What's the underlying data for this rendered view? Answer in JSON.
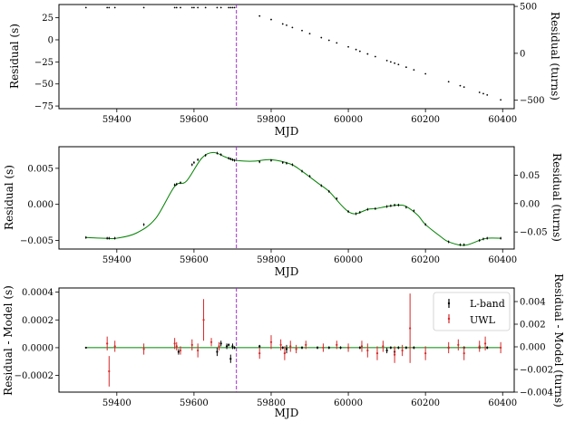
{
  "chart_data": [
    {
      "type": "scatter",
      "xlabel": "MJD",
      "ylabel": "Residual (s)",
      "ylabel_right": "Residual (turns)",
      "xlim": [
        59250,
        60430
      ],
      "ylim": [
        -78,
        40
      ],
      "ylim_right": [
        -590,
        520
      ],
      "xticks": [
        59400,
        59600,
        59800,
        60000,
        60200,
        60400
      ],
      "yticks": [
        -75,
        -50,
        -25,
        0,
        25
      ],
      "yticks_right": [
        -500,
        0,
        500
      ],
      "vline_mjd": 59710,
      "series": [
        {
          "x": [
            59320,
            59375,
            59380,
            59395,
            59470,
            59550,
            59555,
            59565,
            59595,
            59600,
            59610,
            59630,
            59660,
            59670,
            59690,
            59695,
            59700,
            59705,
            59770,
            59800,
            59830,
            59840,
            59855,
            59880,
            59900,
            59930,
            59950,
            59970,
            60000,
            60020,
            60030,
            60050,
            60070,
            60100,
            60110,
            60120,
            60130,
            60150,
            60170,
            60200,
            60260,
            60290,
            60300,
            60340,
            60350,
            60360,
            60395
          ],
          "y": [
            36.5,
            36.5,
            36.5,
            36.5,
            36.5,
            36.5,
            36.5,
            36.5,
            36.5,
            36.5,
            36.5,
            36.5,
            36.5,
            36.5,
            36.5,
            36.5,
            36.5,
            36.5,
            27.0,
            23.0,
            18.0,
            16.5,
            14.0,
            10.5,
            7.0,
            2.5,
            -0.5,
            -3.5,
            -8.0,
            -11.0,
            -13.0,
            -16.0,
            -19.0,
            -23.5,
            -25.0,
            -26.5,
            -28.0,
            -31.0,
            -34.0,
            -38.5,
            -47.5,
            -52.0,
            -53.5,
            -59.5,
            -61.0,
            -62.5,
            -68.0
          ]
        }
      ]
    },
    {
      "type": "line",
      "xlabel": "MJD",
      "ylabel": "Residual (s)",
      "ylabel_right": "Residual (turns)",
      "xlim": [
        59250,
        60430
      ],
      "ylim": [
        -0.0062,
        0.008
      ],
      "ylim_right": [
        -0.08,
        0.1
      ],
      "xticks": [
        59400,
        59600,
        59800,
        60000,
        60200,
        60400
      ],
      "yticks": [
        -0.005,
        0.0,
        0.005
      ],
      "yticks_right": [
        -0.05,
        0.0,
        0.05
      ],
      "vline_mjd": 59710,
      "series": [
        {
          "name": "model",
          "x": [
            59320,
            59370,
            59400,
            59450,
            59500,
            59550,
            59580,
            59620,
            59650,
            59680,
            59700,
            59730,
            59760,
            59800,
            59850,
            59880,
            59920,
            59950,
            59980,
            60000,
            60020,
            60050,
            60070,
            60100,
            60130,
            60150,
            60180,
            60200,
            60240,
            60260,
            60300,
            60340,
            60360,
            60395
          ],
          "y": [
            -0.0046,
            -0.0047,
            -0.0047,
            -0.004,
            -0.002,
            0.0025,
            0.0032,
            0.0064,
            0.0072,
            0.0066,
            0.0062,
            0.006,
            0.006,
            0.0062,
            0.0056,
            0.0046,
            0.003,
            0.0018,
            0.0,
            -0.001,
            -0.0013,
            -0.0007,
            -0.0006,
            -0.0003,
            -0.0001,
            -0.0003,
            -0.0015,
            -0.0028,
            -0.0045,
            -0.0052,
            -0.0057,
            -0.005,
            -0.0047,
            -0.0047
          ]
        },
        {
          "name": "data",
          "x": [
            59320,
            59375,
            59380,
            59395,
            59470,
            59550,
            59555,
            59565,
            59595,
            59600,
            59610,
            59630,
            59660,
            59670,
            59690,
            59695,
            59700,
            59705,
            59770,
            59800,
            59830,
            59840,
            59855,
            59880,
            59900,
            59930,
            59950,
            59970,
            60000,
            60020,
            60030,
            60050,
            60070,
            60100,
            60110,
            60120,
            60130,
            60150,
            60170,
            60200,
            60260,
            60290,
            60300,
            60340,
            60350,
            60360,
            60395
          ],
          "y": [
            -0.0046,
            -0.0047,
            -0.0047,
            -0.0047,
            -0.0028,
            0.0027,
            0.0028,
            0.003,
            0.0055,
            0.0058,
            0.0062,
            0.0068,
            0.0071,
            0.0069,
            0.0064,
            0.0063,
            0.0062,
            0.0061,
            0.0059,
            0.0061,
            0.0058,
            0.0057,
            0.0055,
            0.0046,
            0.0039,
            0.0026,
            0.0018,
            0.0008,
            -0.001,
            -0.0013,
            -0.0011,
            -0.0007,
            -0.0006,
            -0.0003,
            -0.0002,
            -0.0001,
            -0.0001,
            -0.0004,
            -0.0009,
            -0.0028,
            -0.0052,
            -0.0056,
            -0.0056,
            -0.005,
            -0.0048,
            -0.0047,
            -0.0047
          ]
        }
      ]
    },
    {
      "type": "scatter",
      "xlabel": "MJD",
      "ylabel": "Residual - Model (s)",
      "ylabel_right": "Residual - Model (turns)",
      "xlim": [
        59250,
        60430
      ],
      "ylim": [
        -0.00032,
        0.00043
      ],
      "ylim_right": [
        -0.004,
        0.0052
      ],
      "xticks": [
        59400,
        59600,
        59800,
        60000,
        60200,
        60400
      ],
      "yticks": [
        -0.0002,
        0.0,
        0.0002,
        0.0004
      ],
      "yticks_right": [
        -0.004,
        -0.002,
        0.0,
        0.002,
        0.004
      ],
      "vline_mjd": 59710,
      "legend": "top-right",
      "series": [
        {
          "name": "L-band",
          "x": [
            59320,
            59560,
            59660,
            59670,
            59685,
            59690,
            59695,
            59700,
            59705,
            59770,
            59830,
            59840,
            59880,
            59920,
            59950,
            59980,
            60030,
            60100,
            60110,
            60120,
            60130,
            60150,
            60170,
            60260,
            60300,
            60340,
            60360
          ],
          "y": [
            0.0,
            -3e-05,
            -3e-05,
            3e-05,
            1e-05,
            2e-05,
            -8e-05,
            1e-05,
            0.0,
            1e-05,
            0.0,
            -1e-05,
            0.0,
            0.0,
            0.0,
            0.0,
            0.0,
            -2e-05,
            0.0,
            -3e-05,
            0.0,
            0.0,
            0.0,
            0.0,
            0.0,
            0.0,
            0.0
          ],
          "err": [
            5e-06,
            2e-05,
            3e-05,
            2e-05,
            2e-05,
            1e-05,
            3e-05,
            2e-05,
            1e-05,
            1e-05,
            1e-05,
            3e-05,
            1e-05,
            1e-05,
            1e-05,
            1e-05,
            1e-05,
            2e-05,
            1e-05,
            3e-05,
            1e-05,
            1e-05,
            1e-05,
            1e-05,
            1e-05,
            1e-05,
            1e-05
          ]
        },
        {
          "name": "UWL",
          "x": [
            59375,
            59380,
            59395,
            59470,
            59550,
            59555,
            59565,
            59595,
            59610,
            59625,
            59645,
            59665,
            59770,
            59800,
            59825,
            59835,
            59850,
            59865,
            59890,
            59935,
            59970,
            60000,
            60035,
            60050,
            60075,
            60090,
            60120,
            60140,
            60160,
            60200,
            60260,
            60285,
            60300,
            60340,
            60355,
            60395
          ],
          "y": [
            3e-05,
            -0.00017,
            1e-05,
            -1e-05,
            3e-05,
            1e-05,
            -2e-05,
            2e-05,
            -2e-05,
            0.0002,
            4e-05,
            1e-05,
            -4e-05,
            4e-05,
            2e-05,
            -4e-05,
            1e-05,
            -1e-05,
            2e-05,
            0.0,
            2e-05,
            0.0,
            1e-05,
            -2e-05,
            -4e-05,
            1e-05,
            -5e-05,
            -2e-05,
            0.00014,
            -4e-05,
            0.0,
            2e-05,
            -4e-05,
            1e-05,
            3e-05,
            0.0
          ],
          "err": [
            5e-05,
            0.00011,
            4e-05,
            4e-05,
            4e-05,
            3e-05,
            3e-05,
            4e-05,
            5e-05,
            0.00015,
            3e-05,
            3e-05,
            4e-05,
            5e-05,
            4e-05,
            5e-05,
            4e-05,
            3e-05,
            3e-05,
            3e-05,
            3e-05,
            3e-05,
            4e-05,
            5e-05,
            5e-05,
            4e-05,
            6e-05,
            4e-05,
            0.00025,
            5e-05,
            4e-05,
            4e-05,
            5e-05,
            4e-05,
            5e-05,
            4e-05
          ]
        }
      ]
    }
  ],
  "colors": {
    "lband": "#000000",
    "uwl": "#d62728",
    "model": "#008000",
    "vline": "#9b30c8",
    "vline_dash": "#d16bd8"
  }
}
